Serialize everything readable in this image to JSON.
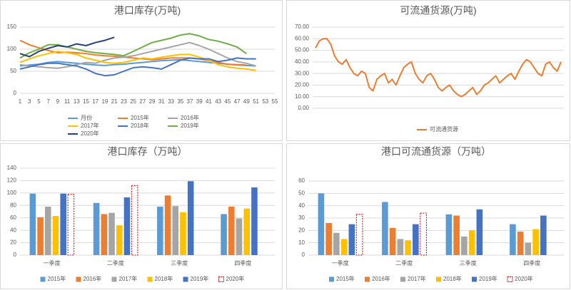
{
  "chart_data": [
    {
      "type": "line",
      "title": "港口库存(万吨)",
      "x": [
        1,
        3,
        5,
        7,
        9,
        11,
        13,
        15,
        17,
        19,
        21,
        23,
        25,
        27,
        29,
        31,
        33,
        35,
        37,
        39,
        41,
        43,
        45,
        47,
        49,
        51
      ],
      "xlim": [
        1,
        55
      ],
      "xticks": [
        1,
        3,
        5,
        7,
        9,
        11,
        13,
        15,
        17,
        19,
        21,
        23,
        25,
        27,
        29,
        31,
        33,
        35,
        37,
        39,
        41,
        43,
        45,
        47,
        49,
        51,
        53,
        55
      ],
      "ylim": [
        0,
        150
      ],
      "yticks": [
        0,
        50,
        100,
        150
      ],
      "grid": true,
      "legend": "bottom",
      "series": [
        {
          "name": "月份",
          "color": "#5b9bd5",
          "values": [
            62,
            64,
            66,
            70,
            72,
            70,
            68,
            66,
            64,
            63,
            65,
            66,
            68,
            70,
            72,
            74,
            75,
            76,
            74,
            72,
            70,
            68,
            66,
            64,
            63,
            62
          ]
        },
        {
          "name": "2015年",
          "color": "#ed7d31",
          "values": [
            120,
            110,
            103,
            97,
            92,
            93,
            92,
            90,
            87,
            85,
            84,
            82,
            80,
            78,
            76,
            78,
            80,
            80,
            80,
            78,
            74,
            70,
            66,
            65,
            64,
            null
          ]
        },
        {
          "name": "2016年",
          "color": "#a5a5a5",
          "values": [
            65,
            62,
            60,
            58,
            57,
            60,
            65,
            70,
            68,
            75,
            80,
            82,
            85,
            90,
            95,
            100,
            105,
            110,
            115,
            108,
            100,
            90,
            80,
            72,
            68,
            62
          ]
        },
        {
          "name": "2017年",
          "color": "#ffc000",
          "values": [
            70,
            78,
            85,
            90,
            95,
            92,
            88,
            80,
            75,
            70,
            68,
            70,
            75,
            80,
            78,
            82,
            85,
            88,
            88,
            82,
            75,
            65,
            60,
            57,
            55,
            52
          ]
        },
        {
          "name": "2018年",
          "color": "#4472c4",
          "values": [
            55,
            60,
            65,
            68,
            68,
            65,
            62,
            55,
            45,
            40,
            42,
            50,
            58,
            60,
            58,
            55,
            65,
            75,
            80,
            78,
            78,
            72,
            75,
            80,
            78,
            78
          ]
        },
        {
          "name": "2019年",
          "color": "#70ad47",
          "values": [
            80,
            92,
            100,
            110,
            110,
            105,
            100,
            95,
            92,
            90,
            88,
            85,
            95,
            105,
            115,
            120,
            125,
            132,
            135,
            130,
            122,
            118,
            112,
            105,
            90,
            null
          ]
        },
        {
          "name": "2020年",
          "color": "#264478",
          "values": [
            90,
            83,
            95,
            102,
            108,
            105,
            112,
            108,
            115,
            120,
            127,
            null,
            null,
            null,
            null,
            null,
            null,
            null,
            null,
            null,
            null,
            null,
            null,
            null,
            null,
            null
          ]
        }
      ]
    },
    {
      "type": "line",
      "title": "可流通货源(万吨)",
      "ylim": [
        0,
        70
      ],
      "yticks": [
        {
          "value": 0,
          "label": "0.00"
        },
        {
          "value": 10,
          "label": "10.00"
        },
        {
          "value": 20,
          "label": "20.00"
        },
        {
          "value": 30,
          "label": "30.00"
        },
        {
          "value": 40,
          "label": "40.00"
        },
        {
          "value": 50,
          "label": "50.00"
        },
        {
          "value": 60,
          "label": "60.00"
        },
        {
          "value": 70,
          "label": "70.00"
        }
      ],
      "grid": true,
      "legend": "bottom",
      "series": [
        {
          "name": "可流通货源",
          "color": "#ed7d31",
          "values": [
            52,
            58,
            60,
            60,
            55,
            45,
            40,
            38,
            42,
            35,
            30,
            28,
            32,
            30,
            18,
            15,
            25,
            28,
            30,
            22,
            25,
            20,
            28,
            35,
            38,
            40,
            30,
            25,
            22,
            28,
            30,
            25,
            18,
            15,
            18,
            20,
            15,
            12,
            10,
            12,
            15,
            18,
            12,
            15,
            20,
            22,
            25,
            28,
            22,
            25,
            28,
            30,
            25,
            32,
            38,
            42,
            40,
            35,
            30,
            28,
            38,
            40,
            35,
            32,
            40
          ]
        }
      ]
    },
    {
      "type": "bar",
      "title": "港口库存（万吨）",
      "categories": [
        "一季度",
        "二季度",
        "三季度",
        "四季度"
      ],
      "ylim": [
        0,
        140
      ],
      "yticks": [
        0,
        20,
        40,
        60,
        80,
        100,
        120,
        140
      ],
      "grid": true,
      "legend": "bottom",
      "series": [
        {
          "name": "2015年",
          "color": "#5b9bd5",
          "values": [
            99,
            84,
            78,
            66
          ]
        },
        {
          "name": "2016年",
          "color": "#ed7d31",
          "values": [
            61,
            66,
            96,
            78
          ]
        },
        {
          "name": "2017年",
          "color": "#a5a5a5",
          "values": [
            78,
            68,
            79,
            59
          ]
        },
        {
          "name": "2018年",
          "color": "#ffc000",
          "values": [
            63,
            48,
            69,
            75
          ]
        },
        {
          "name": "2019年",
          "color": "#4472c4",
          "values": [
            99,
            93,
            119,
            109
          ]
        },
        {
          "name": "2020年",
          "color": "#c00000",
          "dashed": true,
          "values": [
            98,
            112,
            null,
            null
          ]
        }
      ]
    },
    {
      "type": "bar",
      "title": "港口可流通货源（万吨）",
      "categories": [
        "一季度",
        "二季度",
        "三季度",
        "四季度"
      ],
      "ylim": [
        0,
        60
      ],
      "yticks": [
        0,
        10,
        20,
        30,
        40,
        50,
        60
      ],
      "grid": true,
      "legend": "bottom",
      "series": [
        {
          "name": "2015年",
          "color": "#5b9bd5",
          "values": [
            50,
            43,
            33,
            25
          ]
        },
        {
          "name": "2016年",
          "color": "#ed7d31",
          "values": [
            26,
            22,
            32,
            19
          ]
        },
        {
          "name": "2017年",
          "color": "#a5a5a5",
          "values": [
            18,
            13,
            15,
            10
          ]
        },
        {
          "name": "2018年",
          "color": "#ffc000",
          "values": [
            13,
            12,
            20,
            21
          ]
        },
        {
          "name": "2019年",
          "color": "#4472c4",
          "values": [
            25,
            25,
            37,
            32
          ]
        },
        {
          "name": "2020年",
          "color": "#c00000",
          "dashed": true,
          "values": [
            33,
            34,
            null,
            null
          ]
        }
      ]
    }
  ]
}
